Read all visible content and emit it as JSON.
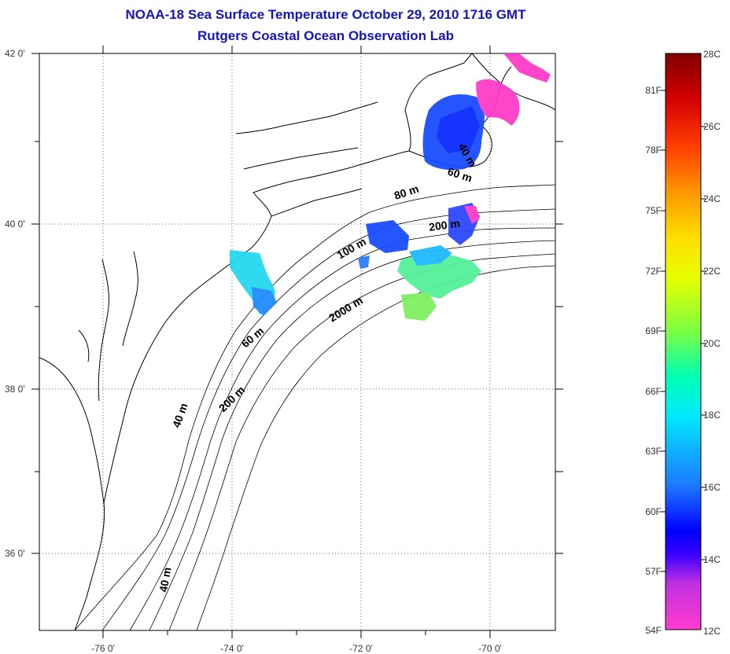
{
  "title": {
    "line1": "NOAA-18 Sea Surface Temperature October 29, 2010 1716 GMT",
    "line2": "Rutgers Coastal Ocean Observation Lab"
  },
  "map": {
    "x_ticks": [
      {
        "label": "-76 0'",
        "value": -76
      },
      {
        "label": "-74 0'",
        "value": -74
      },
      {
        "label": "-72 0'",
        "value": -72
      },
      {
        "label": "-70 0'",
        "value": -70
      }
    ],
    "y_ticks": [
      {
        "label": "42 0'",
        "value": 42
      },
      {
        "label": "40 0'",
        "value": 40
      },
      {
        "label": "38 0'",
        "value": 38
      },
      {
        "label": "36 0'",
        "value": 36
      }
    ],
    "lon_range": [
      -77,
      -69
    ],
    "lat_range": [
      35,
      42
    ],
    "grid": "dotted",
    "contour_labels": [
      "40 m",
      "60 m",
      "80 m",
      "200 m",
      "100 m",
      "60 m",
      "2000 m",
      "40 m",
      "200 m",
      "40 m"
    ]
  },
  "colorbar": {
    "fahrenheit_labels": [
      "81F",
      "78F",
      "75F",
      "72F",
      "69F",
      "66F",
      "63F",
      "60F",
      "57F",
      "54F"
    ],
    "celsius_labels": [
      "28C",
      "26C",
      "24C",
      "22C",
      "20C",
      "18C",
      "16C",
      "14C",
      "12C"
    ],
    "range_c": [
      12,
      28
    ],
    "colors": [
      "#ff3cc8",
      "#9b2ad6",
      "#0000ff",
      "#1f7cff",
      "#00e6ff",
      "#40ff9a",
      "#b6ff00",
      "#ffff00",
      "#ffa200",
      "#ff3a00",
      "#c80000",
      "#8a0000"
    ]
  }
}
